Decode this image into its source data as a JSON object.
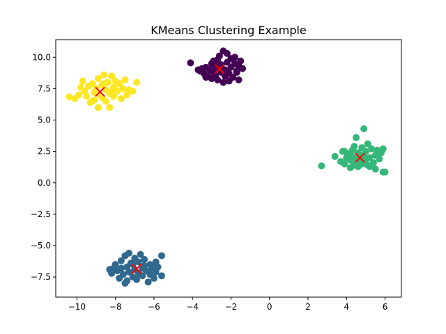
{
  "chart_data": {
    "type": "scatter",
    "title": "KMeans Clustering Example",
    "xlabel": "",
    "ylabel": "",
    "xlim": [
      -11.1,
      6.85
    ],
    "ylim": [
      -9.1,
      11.4
    ],
    "xticks": [
      -10,
      -8,
      -6,
      -4,
      -2,
      0,
      2,
      4,
      6
    ],
    "yticks": [
      -7.5,
      -5.0,
      -2.5,
      0.0,
      2.5,
      5.0,
      7.5,
      10.0
    ],
    "grid": false,
    "legend": "none",
    "series": [
      {
        "color": "#440154",
        "points": [
          [
            -4.1,
            9.55
          ],
          [
            -3.7,
            9.0
          ],
          [
            -3.6,
            8.9
          ],
          [
            -3.5,
            9.1
          ],
          [
            -3.4,
            8.7
          ],
          [
            -3.3,
            9.2
          ],
          [
            -3.2,
            8.5
          ],
          [
            -3.1,
            9.0
          ],
          [
            -3.0,
            9.5
          ],
          [
            -3.0,
            8.3
          ],
          [
            -2.9,
            8.8
          ],
          [
            -2.8,
            9.3
          ],
          [
            -2.8,
            8.6
          ],
          [
            -2.7,
            9.8
          ],
          [
            -2.7,
            8.2
          ],
          [
            -2.6,
            9.1
          ],
          [
            -2.6,
            10.1
          ],
          [
            -2.5,
            8.8
          ],
          [
            -2.5,
            9.4
          ],
          [
            -2.4,
            8.0
          ],
          [
            -2.4,
            10.5
          ],
          [
            -2.3,
            9.0
          ],
          [
            -2.3,
            8.5
          ],
          [
            -2.2,
            9.6
          ],
          [
            -2.2,
            10.3
          ],
          [
            -2.1,
            8.7
          ],
          [
            -2.0,
            9.2
          ],
          [
            -2.0,
            9.9
          ],
          [
            -1.9,
            8.4
          ],
          [
            -1.8,
            9.5
          ],
          [
            -1.8,
            10.0
          ],
          [
            -1.7,
            8.9
          ],
          [
            -1.6,
            9.3
          ],
          [
            -1.6,
            8.2
          ],
          [
            -1.5,
            9.7
          ],
          [
            -1.4,
            9.1
          ],
          [
            -2.9,
            9.7
          ],
          [
            -3.3,
            8.4
          ],
          [
            -2.1,
            8.1
          ],
          [
            -1.7,
            8.8
          ]
        ]
      },
      {
        "color": "#31688e",
        "points": [
          [
            -8.3,
            -6.9
          ],
          [
            -8.2,
            -7.2
          ],
          [
            -8.0,
            -6.5
          ],
          [
            -7.9,
            -7.0
          ],
          [
            -7.8,
            -7.6
          ],
          [
            -7.7,
            -6.2
          ],
          [
            -7.6,
            -7.3
          ],
          [
            -7.5,
            -5.8
          ],
          [
            -7.5,
            -8.0
          ],
          [
            -7.4,
            -6.7
          ],
          [
            -7.3,
            -7.1
          ],
          [
            -7.3,
            -5.6
          ],
          [
            -7.2,
            -6.4
          ],
          [
            -7.1,
            -7.5
          ],
          [
            -7.0,
            -6.0
          ],
          [
            -7.0,
            -6.9
          ],
          [
            -6.9,
            -7.7
          ],
          [
            -6.8,
            -6.3
          ],
          [
            -6.8,
            -7.2
          ],
          [
            -6.7,
            -5.7
          ],
          [
            -6.6,
            -6.8
          ],
          [
            -6.6,
            -7.4
          ],
          [
            -6.5,
            -6.1
          ],
          [
            -6.4,
            -7.0
          ],
          [
            -6.3,
            -7.9
          ],
          [
            -6.2,
            -6.5
          ],
          [
            -6.2,
            -7.3
          ],
          [
            -6.1,
            -6.8
          ],
          [
            -6.0,
            -7.6
          ],
          [
            -5.9,
            -6.3
          ],
          [
            -5.9,
            -7.1
          ],
          [
            -5.8,
            -6.7
          ],
          [
            -5.6,
            -5.8
          ],
          [
            -5.6,
            -7.4
          ],
          [
            -7.7,
            -6.8
          ],
          [
            -7.1,
            -6.5
          ],
          [
            -6.5,
            -6.6
          ],
          [
            -6.0,
            -6.6
          ],
          [
            -8.1,
            -6.8
          ],
          [
            -7.4,
            -7.8
          ]
        ]
      },
      {
        "color": "#35b779",
        "points": [
          [
            2.7,
            1.35
          ],
          [
            3.4,
            2.1
          ],
          [
            3.7,
            1.7
          ],
          [
            3.8,
            2.5
          ],
          [
            3.9,
            1.5
          ],
          [
            4.0,
            2.0
          ],
          [
            4.1,
            2.3
          ],
          [
            4.2,
            1.2
          ],
          [
            4.2,
            1.8
          ],
          [
            4.3,
            2.6
          ],
          [
            4.4,
            1.4
          ],
          [
            4.4,
            2.9
          ],
          [
            4.5,
            1.9
          ],
          [
            4.5,
            3.6
          ],
          [
            4.6,
            1.3
          ],
          [
            4.6,
            2.4
          ],
          [
            4.7,
            1.7
          ],
          [
            4.8,
            2.8
          ],
          [
            4.8,
            1.5
          ],
          [
            4.9,
            2.2
          ],
          [
            4.9,
            4.3
          ],
          [
            5.0,
            1.8
          ],
          [
            5.0,
            2.5
          ],
          [
            5.1,
            3.1
          ],
          [
            5.1,
            1.4
          ],
          [
            5.2,
            2.0
          ],
          [
            5.3,
            2.7
          ],
          [
            5.4,
            1.6
          ],
          [
            5.5,
            2.2
          ],
          [
            5.5,
            1.1
          ],
          [
            5.6,
            2.6
          ],
          [
            5.7,
            1.9
          ],
          [
            5.8,
            2.4
          ],
          [
            5.9,
            2.7
          ],
          [
            5.9,
            0.85
          ],
          [
            6.0,
            0.85
          ],
          [
            4.3,
            2.1
          ],
          [
            4.7,
            2.0
          ],
          [
            5.2,
            1.3
          ],
          [
            3.9,
            2.5
          ]
        ]
      },
      {
        "color": "#fde725",
        "points": [
          [
            -10.4,
            6.85
          ],
          [
            -10.1,
            6.7
          ],
          [
            -9.9,
            7.0
          ],
          [
            -9.8,
            7.6
          ],
          [
            -9.7,
            8.1
          ],
          [
            -9.6,
            7.3
          ],
          [
            -9.5,
            6.9
          ],
          [
            -9.4,
            7.7
          ],
          [
            -9.3,
            6.4
          ],
          [
            -9.2,
            7.9
          ],
          [
            -9.1,
            7.2
          ],
          [
            -9.1,
            6.6
          ],
          [
            -9.0,
            7.5
          ],
          [
            -8.9,
            6.0
          ],
          [
            -8.9,
            8.3
          ],
          [
            -8.8,
            7.0
          ],
          [
            -8.7,
            7.8
          ],
          [
            -8.7,
            6.8
          ],
          [
            -8.6,
            8.6
          ],
          [
            -8.5,
            7.4
          ],
          [
            -8.5,
            6.5
          ],
          [
            -8.4,
            8.0
          ],
          [
            -8.3,
            7.1
          ],
          [
            -8.3,
            6.0
          ],
          [
            -8.2,
            8.5
          ],
          [
            -8.1,
            7.6
          ],
          [
            -8.1,
            6.9
          ],
          [
            -8.0,
            8.1
          ],
          [
            -7.9,
            7.3
          ],
          [
            -7.8,
            7.9
          ],
          [
            -7.7,
            6.7
          ],
          [
            -7.6,
            7.5
          ],
          [
            -7.5,
            8.2
          ],
          [
            -7.4,
            7.0
          ],
          [
            -7.3,
            7.4
          ],
          [
            -7.1,
            7.3
          ],
          [
            -6.9,
            8.0
          ],
          [
            -9.2,
            6.5
          ],
          [
            -8.6,
            7.9
          ],
          [
            -8.2,
            7.2
          ]
        ]
      }
    ],
    "centroids": {
      "color": "#ff0000",
      "marker": "x",
      "points": [
        [
          -2.6,
          9.05
        ],
        [
          -6.9,
          -6.85
        ],
        [
          4.7,
          2.0
        ],
        [
          -8.8,
          7.25
        ]
      ]
    }
  }
}
